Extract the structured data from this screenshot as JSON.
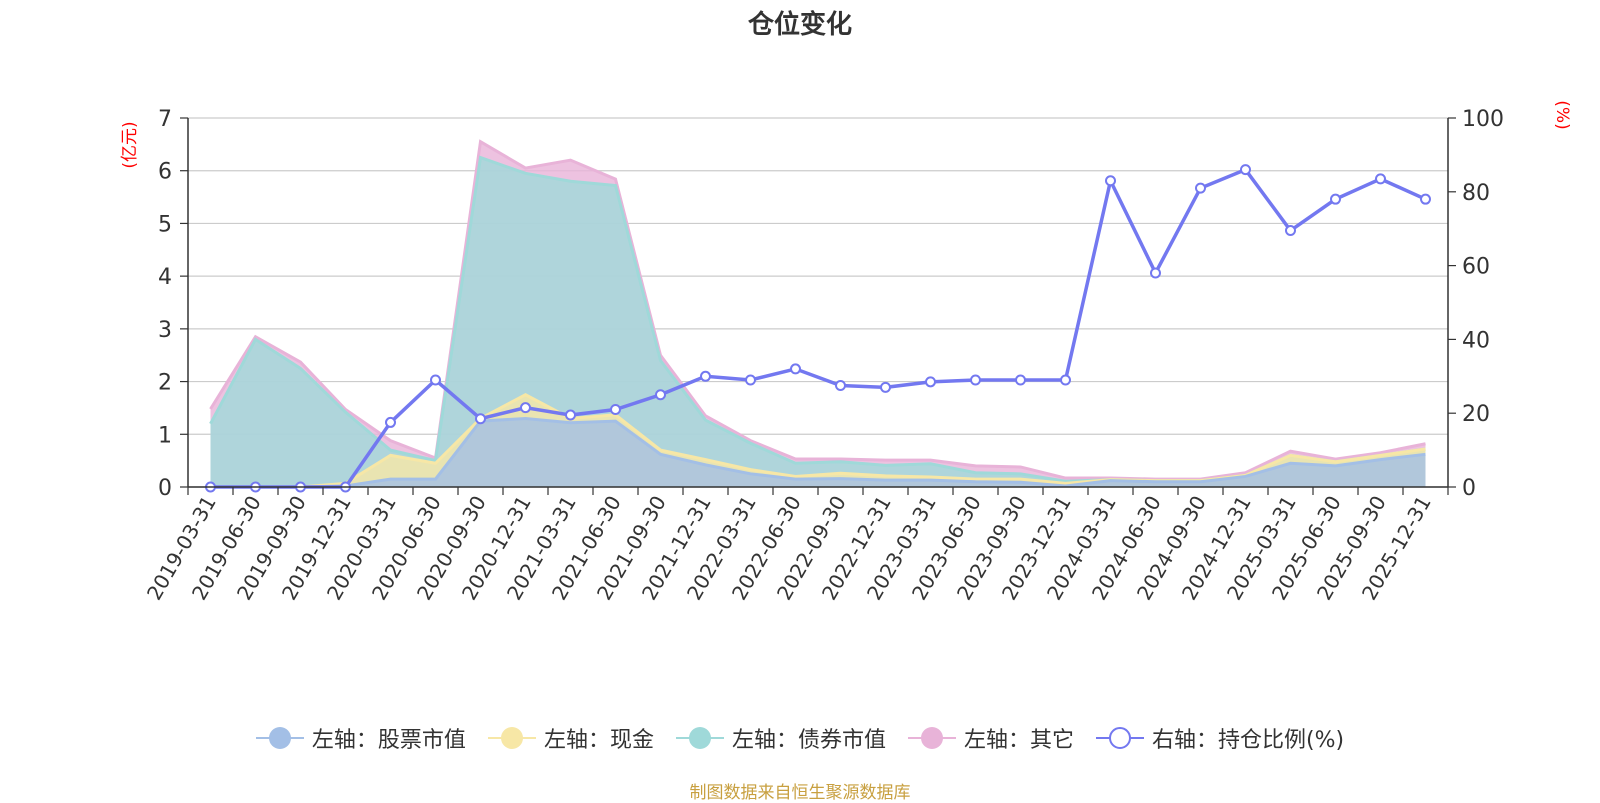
{
  "title": "仓位变化",
  "source": "制图数据来自恒生聚源数据库",
  "colors": {
    "stock": "#a3bfe6",
    "cash": "#f7e7a6",
    "bond": "#9fd9d9",
    "other": "#e8b3d8",
    "ratio": "#7378f0",
    "axis_unit": "#ff0000"
  },
  "legend": [
    {
      "label": "左轴：股票市值",
      "key": "stock"
    },
    {
      "label": "左轴：现金",
      "key": "cash"
    },
    {
      "label": "左轴：债券市值",
      "key": "bond"
    },
    {
      "label": "左轴：其它",
      "key": "other"
    },
    {
      "label": "右轴：持仓比例(%)",
      "key": "ratio"
    }
  ],
  "chart_data": {
    "type": "area",
    "title": "仓位变化",
    "categories": [
      "2019-03-31",
      "2019-06-30",
      "2019-09-30",
      "2019-12-31",
      "2020-03-31",
      "2020-06-30",
      "2020-09-30",
      "2020-12-31",
      "2021-03-31",
      "2021-06-30",
      "2021-09-30",
      "2021-12-31",
      "2022-03-31",
      "2022-06-30",
      "2022-09-30",
      "2022-12-31",
      "2023-03-31",
      "2023-06-30",
      "2023-09-30",
      "2023-12-31",
      "2024-03-31",
      "2024-06-30",
      "2024-09-30",
      "2024-12-31",
      "2025-03-31",
      "2025-06-30",
      "2025-09-30",
      "2025-12-31"
    ],
    "left_axis": {
      "label": "(亿元)",
      "ylim": [
        0,
        7
      ],
      "ticks": [
        0,
        1,
        2,
        3,
        4,
        5,
        6,
        7
      ]
    },
    "right_axis": {
      "label": "(%)",
      "ylim": [
        0,
        100
      ],
      "ticks": [
        0,
        20,
        40,
        60,
        80,
        100
      ]
    },
    "series": [
      {
        "name": "左轴：股票市值",
        "axis": "left",
        "stacked": true,
        "values": [
          0,
          0,
          0,
          0.02,
          0.15,
          0.15,
          1.25,
          1.3,
          1.22,
          1.25,
          0.62,
          0.42,
          0.25,
          0.15,
          0.16,
          0.13,
          0.13,
          0.1,
          0.09,
          0.02,
          0.12,
          0.1,
          0.1,
          0.2,
          0.45,
          0.4,
          0.52,
          0.62
        ]
      },
      {
        "name": "左轴：现金",
        "axis": "left",
        "stacked": true,
        "values": [
          0,
          0,
          0,
          0.05,
          0.45,
          0.3,
          0.05,
          0.45,
          0.08,
          0.12,
          0.08,
          0.1,
          0.08,
          0.05,
          0.1,
          0.08,
          0.06,
          0.05,
          0.06,
          0.05,
          0.02,
          0.02,
          0.02,
          0.02,
          0.15,
          0.08,
          0.08,
          0.1
        ]
      },
      {
        "name": "左轴：债券市值",
        "axis": "left",
        "stacked": true,
        "values": [
          1.2,
          2.8,
          2.25,
          1.35,
          0.1,
          0.05,
          4.95,
          4.2,
          4.5,
          4.35,
          1.7,
          0.75,
          0.5,
          0.25,
          0.22,
          0.2,
          0.25,
          0.12,
          0.1,
          0.04,
          0,
          0,
          0,
          0,
          0,
          0,
          0,
          0
        ]
      },
      {
        "name": "左轴：其它",
        "axis": "left",
        "stacked": true,
        "values": [
          0.28,
          0.05,
          0.12,
          0.05,
          0.18,
          0.05,
          0.3,
          0.1,
          0.4,
          0.12,
          0.1,
          0.08,
          0.05,
          0.08,
          0.05,
          0.1,
          0.07,
          0.13,
          0.13,
          0.06,
          0.03,
          0.03,
          0.03,
          0.05,
          0.08,
          0.05,
          0.05,
          0.1
        ]
      },
      {
        "name": "右轴：持仓比例(%)",
        "axis": "right",
        "type": "line",
        "values": [
          0,
          0,
          0,
          0,
          17.5,
          29,
          18.5,
          21.5,
          19.5,
          21,
          25,
          30,
          29,
          32,
          27.5,
          27,
          28.5,
          29,
          29,
          29,
          83,
          58,
          81,
          86,
          69.5,
          78,
          83.5,
          78
        ]
      }
    ]
  }
}
